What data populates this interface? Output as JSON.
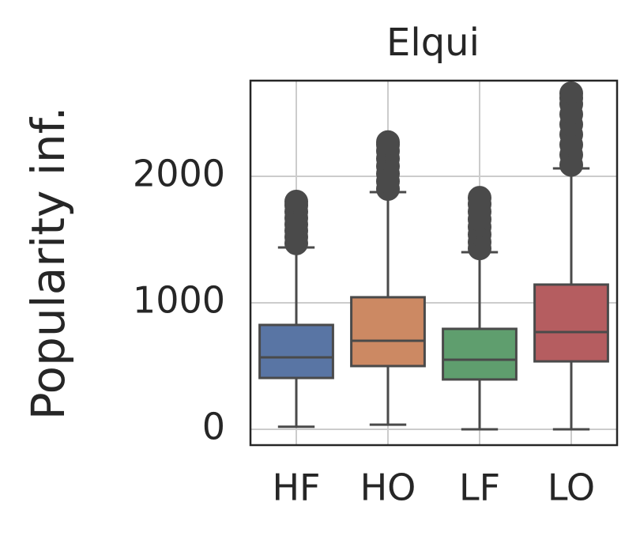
{
  "chart_data": {
    "type": "box",
    "title": "Elqui",
    "y_label": "Popularity inf.",
    "categories": [
      "HF",
      "HO",
      "LF",
      "LO"
    ],
    "colors": [
      "#5975a4",
      "#cc8963",
      "#5f9e6e",
      "#b55d60"
    ],
    "boxes": [
      {
        "whislo": 20,
        "q1": 406,
        "med": 569,
        "q3": 825,
        "whishi": 1437,
        "fliers": [
          1470,
          1520,
          1570,
          1620,
          1670,
          1720,
          1770,
          1800
        ]
      },
      {
        "whislo": 37,
        "q1": 500,
        "med": 700,
        "q3": 1044,
        "whishi": 1875,
        "fliers": [
          1900,
          1960,
          2020,
          2080,
          2140,
          2200,
          2250,
          2270
        ]
      },
      {
        "whislo": 0,
        "q1": 394,
        "med": 550,
        "q3": 794,
        "whishi": 1400,
        "fliers": [
          1430,
          1480,
          1540,
          1600,
          1660,
          1720,
          1780,
          1830
        ]
      },
      {
        "whislo": 0,
        "q1": 537,
        "med": 769,
        "q3": 1144,
        "whishi": 2062,
        "fliers": [
          2090,
          2170,
          2250,
          2330,
          2410,
          2490,
          2570,
          2620,
          2656
        ]
      }
    ],
    "ylim": [
      -125,
      2756
    ],
    "yticks": [
      0,
      1000,
      2000
    ],
    "grid": true
  }
}
